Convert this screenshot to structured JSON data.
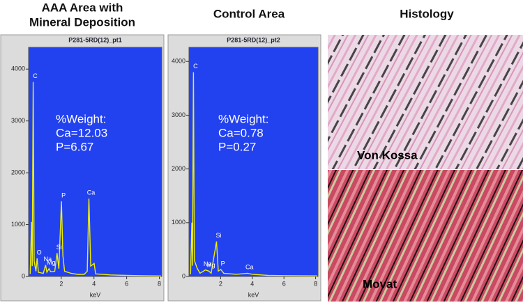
{
  "chart_data": [
    {
      "type": "line",
      "heading": [
        "AAA Area with",
        "Mineral Deposition"
      ],
      "title": "P281-5RD(12)_pt1",
      "x_label": "keV",
      "x": [
        0.1,
        0.18,
        0.22,
        0.28,
        0.34,
        0.45,
        0.52,
        0.6,
        0.9,
        1.04,
        1.12,
        1.25,
        1.35,
        1.6,
        1.74,
        1.85,
        2.01,
        2.1,
        2.2,
        2.6,
        3.0,
        3.4,
        3.59,
        3.69,
        3.8,
        4.01,
        4.1,
        5,
        6,
        7,
        8.1
      ],
      "values": [
        50,
        1050,
        200,
        3750,
        300,
        100,
        350,
        80,
        60,
        220,
        80,
        150,
        90,
        100,
        450,
        150,
        1450,
        400,
        100,
        60,
        40,
        40,
        100,
        1500,
        200,
        250,
        50,
        30,
        20,
        15,
        10
      ],
      "color": "#f0f000",
      "xlim": [
        0,
        8.15
      ],
      "xticks": [
        2,
        4,
        6,
        8
      ],
      "ylim": [
        0,
        4500
      ],
      "yticks": [
        0,
        1000,
        2000,
        3000,
        4000
      ],
      "peak_labels": [
        {
          "label": "C",
          "x": 0.28
        },
        {
          "label": "O",
          "x": 0.52
        },
        {
          "label": "Na",
          "x": 1.04
        },
        {
          "label": "Mg",
          "x": 1.25
        },
        {
          "label": "Si",
          "x": 1.74
        },
        {
          "label": "P",
          "x": 2.01
        },
        {
          "label": "Ca",
          "x": 3.69
        }
      ],
      "annotations": [
        "%Weight:",
        "Ca=12.03",
        "P=6.67"
      ]
    },
    {
      "type": "line",
      "heading": [
        "Control Area"
      ],
      "title": "P281-5RD(12)_pt2",
      "x_label": "keV",
      "x": [
        0.1,
        0.18,
        0.22,
        0.28,
        0.34,
        0.52,
        0.7,
        1.04,
        1.25,
        1.4,
        1.74,
        1.85,
        2.01,
        2.2,
        3.0,
        3.69,
        4.0,
        5,
        6,
        8.1
      ],
      "values": [
        40,
        1000,
        200,
        3800,
        300,
        150,
        60,
        120,
        100,
        60,
        650,
        100,
        130,
        60,
        40,
        60,
        40,
        20,
        15,
        10
      ],
      "color": "#f0f000",
      "xlim": [
        0,
        8.15
      ],
      "xticks": [
        2,
        4,
        6,
        8
      ],
      "ylim": [
        0,
        4340
      ],
      "yticks": [
        0,
        1000,
        2000,
        3000,
        4000
      ],
      "peak_labels": [
        {
          "label": "C",
          "x": 0.28
        },
        {
          "label": "Na",
          "x": 1.04
        },
        {
          "label": "Mg",
          "x": 1.25
        },
        {
          "label": "Si",
          "x": 1.74
        },
        {
          "label": "P",
          "x": 2.01
        },
        {
          "label": "Ca",
          "x": 3.69
        }
      ],
      "annotations": [
        "%Weight:",
        "Ca=0.78",
        "P=0.27"
      ]
    }
  ],
  "histology": {
    "heading": "Histology",
    "panels": [
      "Von Kossa",
      "Movat"
    ]
  }
}
